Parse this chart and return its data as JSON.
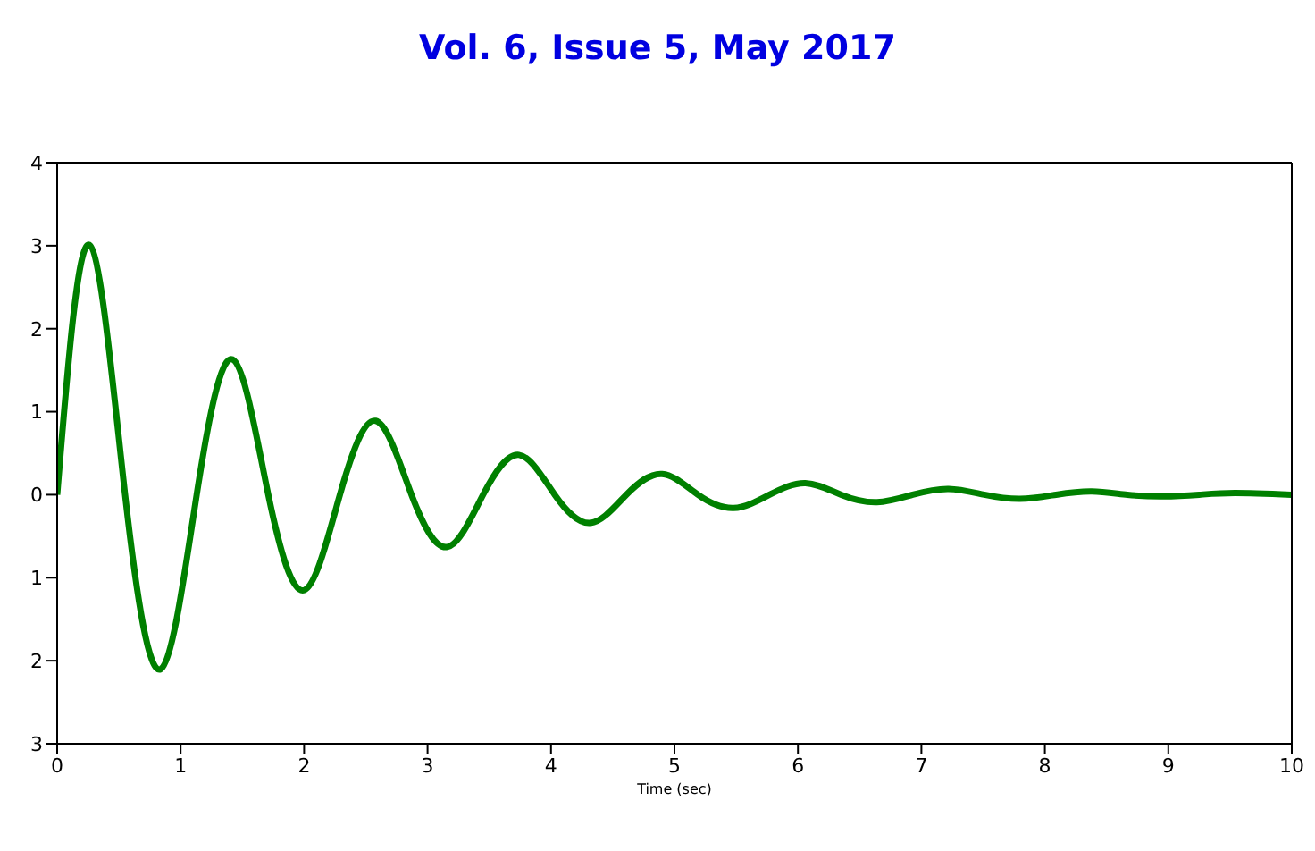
{
  "chart_data": {
    "type": "line",
    "annotations": [
      "Vol. 6, Issue 5, May 2017"
    ],
    "xlabel": "Time (sec)",
    "x": [
      0,
      0.26,
      0.55,
      0.84,
      1.13,
      1.42,
      1.71,
      2.0,
      2.29,
      2.58,
      2.87,
      3.16,
      3.45,
      3.74,
      4.03,
      4.32,
      4.61,
      4.9,
      5.19,
      5.48,
      5.77,
      6.06,
      6.35,
      6.64,
      6.93,
      7.22,
      7.51,
      7.8,
      8.09,
      8.38,
      8.67,
      8.96,
      9.25,
      9.54,
      10
    ],
    "series": [
      {
        "color": "#008000",
        "values": [
          0,
          3.01,
          0,
          -2.1,
          0,
          1.63,
          0,
          -1.15,
          0,
          0.89,
          0,
          -0.63,
          0,
          0.48,
          0,
          -0.34,
          0,
          0.25,
          0,
          -0.16,
          0,
          0.14,
          0,
          -0.09,
          0,
          0.07,
          0,
          -0.05,
          0,
          0.04,
          0,
          -0.02,
          0,
          0.02,
          0
        ]
      }
    ],
    "xlim": [
      0,
      10
    ],
    "xticks": [
      0,
      1,
      2,
      3,
      4,
      5,
      6,
      7,
      8,
      9,
      10
    ],
    "ylim": [
      -3,
      4
    ],
    "yticks": [
      {
        "value": 4,
        "label": "4"
      },
      {
        "value": 3,
        "label": "3"
      },
      {
        "value": 2,
        "label": "2"
      },
      {
        "value": 1,
        "label": "1"
      },
      {
        "value": 0,
        "label": "0"
      },
      {
        "value": -1,
        "label": "1"
      },
      {
        "value": -2,
        "label": "2"
      },
      {
        "value": -3,
        "label": "3"
      }
    ],
    "grid": false,
    "legend": false,
    "marker": "none",
    "line_style": "solid"
  }
}
